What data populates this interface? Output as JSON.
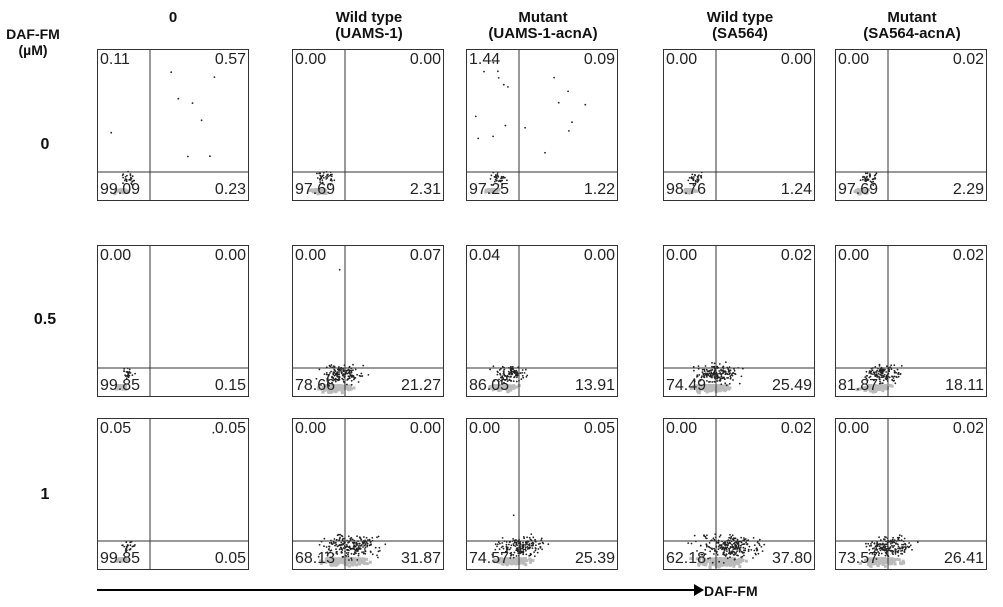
{
  "corner_label": [
    "DAF-FM",
    "(µM)"
  ],
  "chart_data": {
    "type": "scatter",
    "x_axis_label": "DAF-FM",
    "columns": [
      {
        "line1": "0",
        "line2": ""
      },
      {
        "line1": "Wild type",
        "line2": "(UAMS-1)"
      },
      {
        "line1": "Mutant",
        "line2": "(UAMS-1-acnA)"
      },
      {
        "line1": "Wild type",
        "line2": "(SA564)"
      },
      {
        "line1": "Mutant",
        "line2": "(SA564-acnA)"
      }
    ],
    "rows": [
      "0",
      "0.5",
      "1"
    ],
    "quadrant_percentages": [
      [
        {
          "ul": "0.11",
          "ur": "0.57",
          "ll": "99.09",
          "lr": "0.23"
        },
        {
          "ul": "0.00",
          "ur": "0.00",
          "ll": "97.69",
          "lr": "2.31"
        },
        {
          "ul": "1.44",
          "ur": "0.09",
          "ll": "97.25",
          "lr": "1.22"
        },
        {
          "ul": "0.00",
          "ur": "0.00",
          "ll": "98.76",
          "lr": "1.24"
        },
        {
          "ul": "0.00",
          "ur": "0.02",
          "ll": "97.69",
          "lr": "2.29"
        }
      ],
      [
        {
          "ul": "0.00",
          "ur": "0.00",
          "ll": "99.85",
          "lr": "0.15"
        },
        {
          "ul": "0.00",
          "ur": "0.07",
          "ll": "78.66",
          "lr": "21.27"
        },
        {
          "ul": "0.04",
          "ur": "0.00",
          "ll": "86.05",
          "lr": "13.91"
        },
        {
          "ul": "0.00",
          "ur": "0.02",
          "ll": "74.49",
          "lr": "25.49"
        },
        {
          "ul": "0.00",
          "ur": "0.02",
          "ll": "81.87",
          "lr": "18.11"
        }
      ],
      [
        {
          "ul": "0.05",
          "ur": "0.05",
          "ll": "99.85",
          "lr": "0.05"
        },
        {
          "ul": "0.00",
          "ur": "0.00",
          "ll": "68.13",
          "lr": "31.87"
        },
        {
          "ul": "0.00",
          "ur": "0.05",
          "ll": "74.57",
          "lr": "25.39"
        },
        {
          "ul": "0.00",
          "ur": "0.02",
          "ll": "62.18",
          "lr": "37.80"
        },
        {
          "ul": "0.00",
          "ur": "0.02",
          "ll": "73.57",
          "lr": "26.41"
        }
      ]
    ],
    "colors": {
      "frame": "#333333",
      "dots": "#222222",
      "density": "#bbbbbb"
    }
  }
}
